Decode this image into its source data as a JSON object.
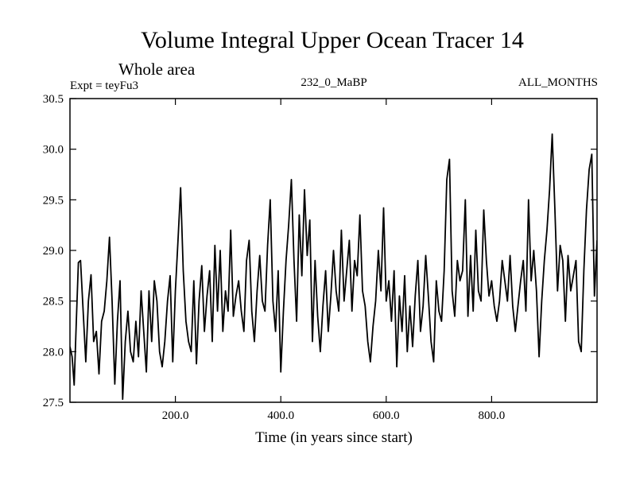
{
  "chart_data": {
    "type": "line",
    "title": "Volume Integral Upper Ocean Tracer 14",
    "subtitle": "Whole area",
    "left_label": "Expt = teyFu3",
    "center_label": "232_0_MaBP",
    "right_label": "ALL_MONTHS",
    "xlabel": "Time (in years since start)",
    "ylabel": "",
    "xlim": [
      0,
      1000
    ],
    "ylim": [
      27.5,
      30.5
    ],
    "x_ticks": [
      200,
      400,
      600,
      800
    ],
    "x_tick_labels": [
      "200.0",
      "400.0",
      "600.0",
      "800.0"
    ],
    "y_ticks": [
      27.5,
      28.0,
      28.5,
      29.0,
      29.5,
      30.0,
      30.5
    ],
    "y_tick_labels": [
      "27.5",
      "28.0",
      "28.5",
      "29.0",
      "29.5",
      "30.0",
      "30.5"
    ],
    "grid": false,
    "series": [
      {
        "name": "Upper Ocean Tracer 14",
        "color": "#000000",
        "points": [
          [
            0,
            28.05
          ],
          [
            4,
            27.95
          ],
          [
            8,
            27.67
          ],
          [
            12,
            28.3
          ],
          [
            16,
            28.88
          ],
          [
            20,
            28.9
          ],
          [
            25,
            28.4
          ],
          [
            30,
            27.9
          ],
          [
            35,
            28.5
          ],
          [
            40,
            28.76
          ],
          [
            45,
            28.1
          ],
          [
            50,
            28.2
          ],
          [
            55,
            27.78
          ],
          [
            60,
            28.3
          ],
          [
            65,
            28.4
          ],
          [
            70,
            28.7
          ],
          [
            75,
            29.13
          ],
          [
            80,
            28.5
          ],
          [
            85,
            27.68
          ],
          [
            90,
            28.3
          ],
          [
            95,
            28.7
          ],
          [
            100,
            27.53
          ],
          [
            105,
            28.1
          ],
          [
            110,
            28.4
          ],
          [
            115,
            28.0
          ],
          [
            120,
            27.9
          ],
          [
            125,
            28.3
          ],
          [
            130,
            27.95
          ],
          [
            135,
            28.6
          ],
          [
            140,
            28.2
          ],
          [
            145,
            27.8
          ],
          [
            150,
            28.6
          ],
          [
            155,
            28.1
          ],
          [
            160,
            28.7
          ],
          [
            165,
            28.5
          ],
          [
            170,
            28.0
          ],
          [
            175,
            27.85
          ],
          [
            180,
            28.1
          ],
          [
            185,
            28.5
          ],
          [
            190,
            28.75
          ],
          [
            195,
            27.9
          ],
          [
            200,
            28.6
          ],
          [
            205,
            29.1
          ],
          [
            210,
            29.62
          ],
          [
            215,
            28.8
          ],
          [
            220,
            28.3
          ],
          [
            225,
            28.1
          ],
          [
            230,
            28.0
          ],
          [
            235,
            28.7
          ],
          [
            240,
            27.88
          ],
          [
            245,
            28.5
          ],
          [
            250,
            28.85
          ],
          [
            255,
            28.2
          ],
          [
            260,
            28.55
          ],
          [
            265,
            28.8
          ],
          [
            270,
            28.1
          ],
          [
            275,
            29.05
          ],
          [
            280,
            28.4
          ],
          [
            285,
            29.0
          ],
          [
            290,
            28.2
          ],
          [
            295,
            28.6
          ],
          [
            300,
            28.4
          ],
          [
            305,
            29.2
          ],
          [
            310,
            28.35
          ],
          [
            315,
            28.55
          ],
          [
            320,
            28.7
          ],
          [
            325,
            28.4
          ],
          [
            330,
            28.2
          ],
          [
            335,
            28.9
          ],
          [
            340,
            29.1
          ],
          [
            345,
            28.4
          ],
          [
            350,
            28.1
          ],
          [
            355,
            28.6
          ],
          [
            360,
            28.95
          ],
          [
            365,
            28.5
          ],
          [
            370,
            28.4
          ],
          [
            375,
            29.05
          ],
          [
            380,
            29.5
          ],
          [
            385,
            28.5
          ],
          [
            390,
            28.2
          ],
          [
            395,
            28.8
          ],
          [
            400,
            27.8
          ],
          [
            405,
            28.4
          ],
          [
            410,
            28.9
          ],
          [
            415,
            29.25
          ],
          [
            420,
            29.7
          ],
          [
            425,
            28.9
          ],
          [
            430,
            28.3
          ],
          [
            435,
            29.35
          ],
          [
            440,
            28.75
          ],
          [
            445,
            29.6
          ],
          [
            450,
            28.95
          ],
          [
            455,
            29.3
          ],
          [
            460,
            28.1
          ],
          [
            465,
            28.9
          ],
          [
            470,
            28.35
          ],
          [
            475,
            28.0
          ],
          [
            480,
            28.45
          ],
          [
            485,
            28.8
          ],
          [
            490,
            28.2
          ],
          [
            495,
            28.55
          ],
          [
            500,
            29.0
          ],
          [
            505,
            28.6
          ],
          [
            510,
            28.4
          ],
          [
            515,
            29.2
          ],
          [
            520,
            28.5
          ],
          [
            525,
            28.8
          ],
          [
            530,
            29.1
          ],
          [
            535,
            28.4
          ],
          [
            540,
            28.9
          ],
          [
            545,
            28.75
          ],
          [
            550,
            29.35
          ],
          [
            555,
            28.6
          ],
          [
            560,
            28.45
          ],
          [
            565,
            28.1
          ],
          [
            570,
            27.9
          ],
          [
            575,
            28.25
          ],
          [
            580,
            28.5
          ],
          [
            585,
            29.0
          ],
          [
            590,
            28.6
          ],
          [
            595,
            29.42
          ],
          [
            600,
            28.5
          ],
          [
            605,
            28.7
          ],
          [
            610,
            28.3
          ],
          [
            615,
            28.8
          ],
          [
            620,
            27.85
          ],
          [
            625,
            28.55
          ],
          [
            630,
            28.2
          ],
          [
            635,
            28.75
          ],
          [
            640,
            28.0
          ],
          [
            645,
            28.45
          ],
          [
            650,
            28.05
          ],
          [
            655,
            28.55
          ],
          [
            660,
            28.9
          ],
          [
            665,
            28.2
          ],
          [
            670,
            28.45
          ],
          [
            675,
            28.95
          ],
          [
            680,
            28.55
          ],
          [
            685,
            28.1
          ],
          [
            690,
            27.9
          ],
          [
            695,
            28.7
          ],
          [
            700,
            28.4
          ],
          [
            705,
            28.3
          ],
          [
            710,
            28.8
          ],
          [
            715,
            29.7
          ],
          [
            720,
            29.9
          ],
          [
            725,
            28.6
          ],
          [
            730,
            28.35
          ],
          [
            735,
            28.9
          ],
          [
            740,
            28.7
          ],
          [
            745,
            28.8
          ],
          [
            750,
            29.5
          ],
          [
            755,
            28.35
          ],
          [
            760,
            28.95
          ],
          [
            765,
            28.4
          ],
          [
            770,
            29.2
          ],
          [
            775,
            28.6
          ],
          [
            780,
            28.5
          ],
          [
            785,
            29.4
          ],
          [
            790,
            28.9
          ],
          [
            795,
            28.55
          ],
          [
            800,
            28.7
          ],
          [
            805,
            28.45
          ],
          [
            810,
            28.3
          ],
          [
            815,
            28.5
          ],
          [
            820,
            28.9
          ],
          [
            825,
            28.7
          ],
          [
            830,
            28.5
          ],
          [
            835,
            28.95
          ],
          [
            840,
            28.45
          ],
          [
            845,
            28.2
          ],
          [
            850,
            28.45
          ],
          [
            855,
            28.7
          ],
          [
            860,
            28.9
          ],
          [
            865,
            28.4
          ],
          [
            870,
            29.5
          ],
          [
            875,
            28.7
          ],
          [
            880,
            29.0
          ],
          [
            885,
            28.6
          ],
          [
            890,
            27.95
          ],
          [
            895,
            28.5
          ],
          [
            900,
            28.9
          ],
          [
            905,
            29.2
          ],
          [
            910,
            29.6
          ],
          [
            915,
            30.15
          ],
          [
            920,
            29.4
          ],
          [
            925,
            28.6
          ],
          [
            930,
            29.05
          ],
          [
            935,
            28.9
          ],
          [
            940,
            28.3
          ],
          [
            945,
            28.95
          ],
          [
            950,
            28.6
          ],
          [
            955,
            28.75
          ],
          [
            960,
            28.9
          ],
          [
            965,
            28.1
          ],
          [
            970,
            28.0
          ],
          [
            975,
            28.8
          ],
          [
            980,
            29.4
          ],
          [
            985,
            29.8
          ],
          [
            990,
            29.95
          ],
          [
            995,
            28.55
          ],
          [
            1000,
            29.1
          ]
        ]
      }
    ]
  }
}
